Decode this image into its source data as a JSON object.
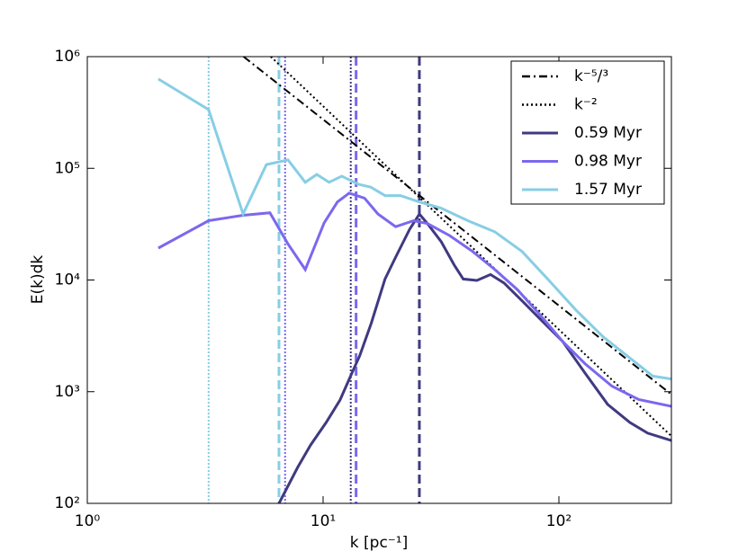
{
  "chart_data": {
    "type": "line",
    "xlabel": "k [pc⁻¹]",
    "ylabel": "E(k)dk",
    "xscale": "log",
    "yscale": "log",
    "xlim": [
      1,
      300
    ],
    "ylim": [
      100,
      1000000
    ],
    "xticks": [
      {
        "value": 1,
        "label": "10⁰"
      },
      {
        "value": 10,
        "label": "10¹"
      },
      {
        "value": 100,
        "label": "10²"
      }
    ],
    "yticks": [
      {
        "value": 100,
        "label": "10²"
      },
      {
        "value": 1000,
        "label": "10³"
      },
      {
        "value": 10000,
        "label": "10⁴"
      },
      {
        "value": 100000,
        "label": "10⁵"
      },
      {
        "value": 1000000,
        "label": "10⁶"
      }
    ],
    "legend": "upper right",
    "series": [
      {
        "name": "k⁻⁵/³",
        "color": "#000000",
        "style": "dashdot",
        "x": [
          4.6,
          300
        ],
        "values": [
          1000000,
          945
        ]
      },
      {
        "name": "k⁻²",
        "color": "#000000",
        "style": "dotted",
        "x": [
          6,
          300
        ],
        "values": [
          1000000,
          400
        ]
      },
      {
        "name": "0.59 Myr",
        "color": "#3f3a80",
        "style": "solid",
        "dashed_k": 25.6,
        "dotted_k": 13.1,
        "x": [
          6.5,
          7.8,
          8.85,
          10.3,
          11.8,
          13.4,
          14.3,
          16,
          18.3,
          20.3,
          23.3,
          25.6,
          27.7,
          31.7,
          36,
          39.3,
          44.9,
          51.3,
          58.5,
          69.8,
          83,
          104,
          129,
          161,
          200,
          238,
          300
        ],
        "values": [
          100,
          210,
          333,
          530,
          843,
          1550,
          2100,
          4100,
          10200,
          16000,
          28500,
          39000,
          32000,
          22000,
          13600,
          10200,
          9900,
          11200,
          9400,
          6500,
          4500,
          2800,
          1470,
          770,
          530,
          425,
          365
        ]
      },
      {
        "name": "0.98 Myr",
        "color": "#7b68ee",
        "style": "solid",
        "dashed_k": 13.8,
        "dotted_k": 6.9,
        "x": [
          2,
          3.27,
          4.58,
          5.95,
          7.1,
          8.4,
          10.1,
          11.5,
          12.9,
          15,
          17.1,
          20.3,
          24.2,
          27.7,
          34.4,
          43.1,
          53.5,
          66.7,
          83,
          104,
          129,
          168,
          218,
          300
        ],
        "values": [
          19300,
          34000,
          38000,
          40000,
          21000,
          12400,
          32400,
          50000,
          60000,
          54000,
          39000,
          30000,
          34000,
          32000,
          25000,
          18000,
          12400,
          8200,
          4900,
          2800,
          1780,
          1120,
          850,
          740
        ]
      },
      {
        "name": "1.57 Myr",
        "color": "#87cee4",
        "style": "solid",
        "dashed_k": 6.5,
        "dotted_k": 3.27,
        "x": [
          2,
          3.27,
          4.58,
          5.75,
          7.1,
          8.4,
          9.4,
          10.6,
          12,
          14.1,
          15.9,
          18.3,
          21.3,
          25.6,
          31.7,
          41.1,
          53.5,
          69.8,
          90.8,
          118,
          154,
          200,
          250,
          300
        ],
        "values": [
          630000,
          335000,
          39000,
          108000,
          119000,
          75000,
          88000,
          75000,
          85000,
          72000,
          68000,
          57000,
          57000,
          50000,
          44000,
          34000,
          27000,
          18000,
          9900,
          5400,
          3100,
          2000,
          1380,
          1300
        ]
      }
    ]
  }
}
